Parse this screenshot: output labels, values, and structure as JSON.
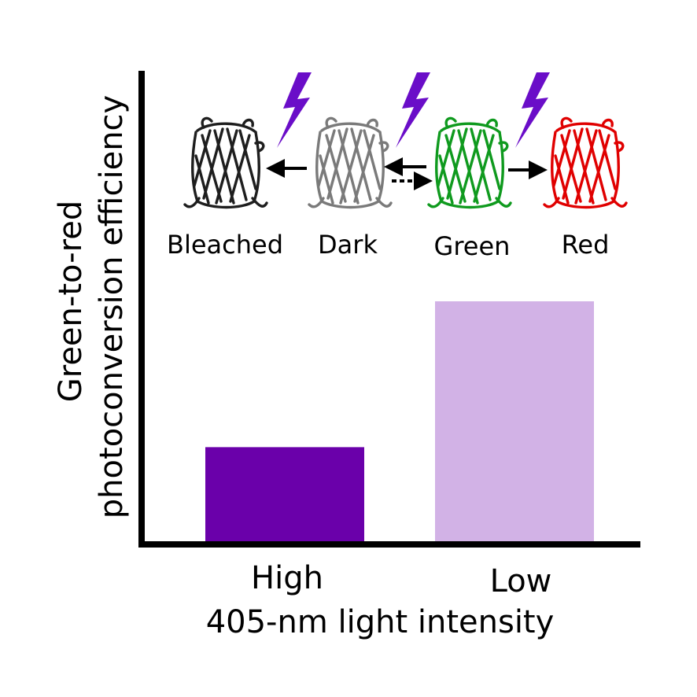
{
  "chart_data": {
    "type": "bar",
    "categories": [
      "High",
      "Low"
    ],
    "values": [
      0.2,
      0.51
    ],
    "bar_colors": [
      "#6a00aa",
      "#d2b2e6"
    ],
    "xlabel": "405-nm light intensity",
    "ylabel": [
      "photoconversion efficiency",
      "Green-to-red"
    ],
    "ylim": [
      0,
      1
    ],
    "grid": false,
    "legend": "none",
    "inset_schematic": {
      "states": [
        {
          "label": "Bleached",
          "color": "#1e1e1e"
        },
        {
          "label": "Dark",
          "color": "#7a7a7a"
        },
        {
          "label": "Green",
          "color": "#0f9a1e"
        },
        {
          "label": "Red",
          "color": "#e00000"
        }
      ],
      "lightning_color": "#6a0dc8",
      "lightning_count": 3
    }
  }
}
